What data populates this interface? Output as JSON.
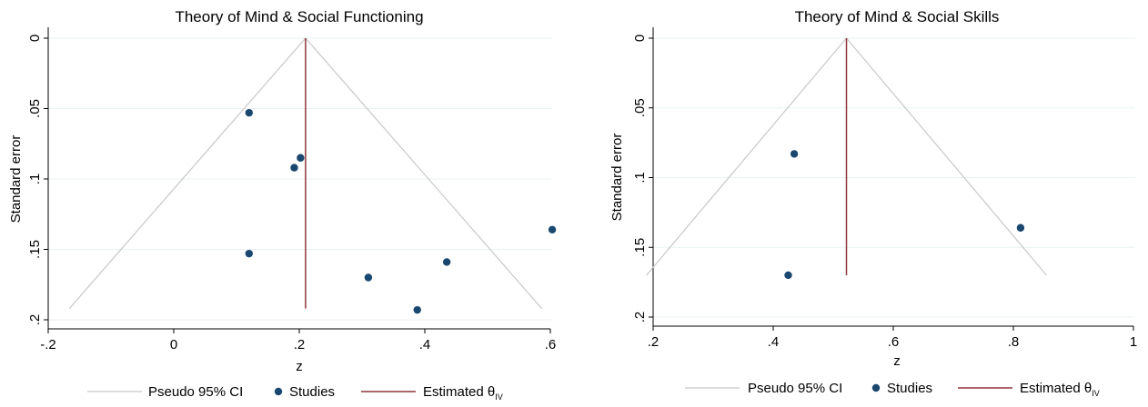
{
  "chart_data": [
    {
      "type": "scatter",
      "title": "Theory of Mind & Social Functioning",
      "xlabel": "z",
      "ylabel": "Standard error",
      "xlim": [
        -0.2,
        0.6
      ],
      "ylim": [
        0.2,
        0
      ],
      "y_reversed": true,
      "grid": true,
      "xticks": [
        -0.2,
        0,
        0.2,
        0.4,
        0.6
      ],
      "xtick_labels": [
        "-.2",
        "0",
        ".2",
        ".4",
        ".6"
      ],
      "yticks": [
        0,
        0.05,
        0.1,
        0.15,
        0.2
      ],
      "ytick_labels": [
        "0",
        ".05",
        ".1",
        ".15",
        ".2"
      ],
      "estimate": 0.21,
      "se_max": 0.192,
      "studies": [
        {
          "x": 0.12,
          "y": 0.053
        },
        {
          "x": 0.202,
          "y": 0.085
        },
        {
          "x": 0.192,
          "y": 0.092
        },
        {
          "x": 0.12,
          "y": 0.153
        },
        {
          "x": 0.31,
          "y": 0.17
        },
        {
          "x": 0.388,
          "y": 0.193
        },
        {
          "x": 0.435,
          "y": 0.159
        },
        {
          "x": 0.603,
          "y": 0.136
        }
      ],
      "legend": {
        "ci": "Pseudo 95% CI",
        "studies": "Studies",
        "estimate_main": "Estimated θ",
        "estimate_sub": "IV"
      },
      "colors": {
        "ci": "#c8c8c8",
        "studies": "#1a476f",
        "estimate": "#90353b",
        "grid": "#eaf2f3"
      }
    },
    {
      "type": "scatter",
      "title": "Theory of Mind & Social Skills",
      "xlabel": "z",
      "ylabel": "Standard error",
      "xlim": [
        0.2,
        1.0
      ],
      "ylim": [
        0.2,
        0
      ],
      "y_reversed": true,
      "grid": true,
      "xticks": [
        0.2,
        0.4,
        0.6,
        0.8,
        1.0
      ],
      "xtick_labels": [
        ".2",
        ".4",
        ".6",
        ".8",
        "1"
      ],
      "yticks": [
        0,
        0.05,
        0.1,
        0.15,
        0.2
      ],
      "ytick_labels": [
        "0",
        ".05",
        ".1",
        ".15",
        ".2"
      ],
      "estimate": 0.522,
      "se_max": 0.17,
      "studies": [
        {
          "x": 0.435,
          "y": 0.083
        },
        {
          "x": 0.812,
          "y": 0.136
        },
        {
          "x": 0.425,
          "y": 0.17
        }
      ],
      "legend": {
        "ci": "Pseudo 95% CI",
        "studies": "Studies",
        "estimate_main": "Estimated θ",
        "estimate_sub": "IV"
      },
      "colors": {
        "ci": "#c8c8c8",
        "studies": "#1a476f",
        "estimate": "#90353b",
        "grid": "#eaf2f3"
      }
    }
  ]
}
